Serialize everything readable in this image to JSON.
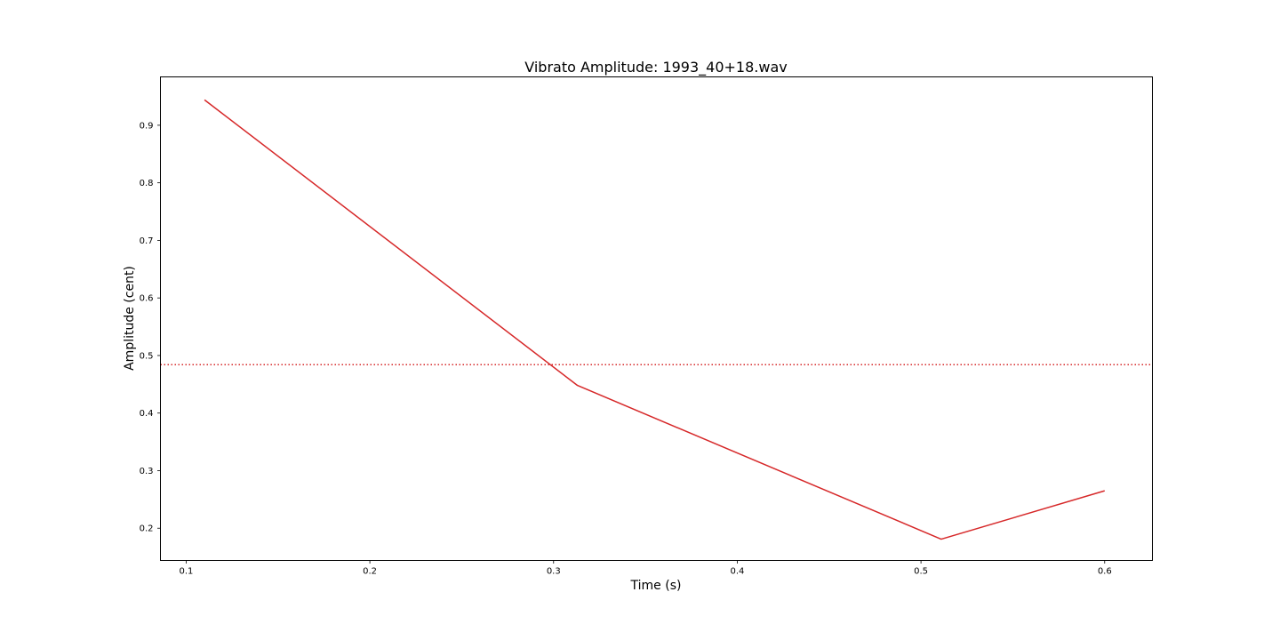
{
  "chart_data": {
    "type": "line",
    "title": "Vibrato Amplitude: 1993_40+18.wav",
    "xlabel": "Time (s)",
    "ylabel": "Amplitude (cent)",
    "xlim": [
      0.086,
      0.626
    ],
    "ylim": [
      0.144,
      0.984
    ],
    "xticks": [
      0.1,
      0.2,
      0.3,
      0.4,
      0.5,
      0.6
    ],
    "xtick_labels": [
      "0.1",
      "0.2",
      "0.3",
      "0.4",
      "0.5",
      "0.6"
    ],
    "yticks": [
      0.2,
      0.3,
      0.4,
      0.5,
      0.6,
      0.7,
      0.8,
      0.9
    ],
    "ytick_labels": [
      "0.2",
      "0.3",
      "0.4",
      "0.5",
      "0.6",
      "0.7",
      "0.8",
      "0.9"
    ],
    "grid": false,
    "series": [
      {
        "x": [
          0.11,
          0.313,
          0.511,
          0.6
        ],
        "y": [
          0.944,
          0.448,
          0.181,
          0.265
        ],
        "color": "#d62728",
        "style": "solid"
      }
    ],
    "reference_lines": [
      {
        "orientation": "horizontal",
        "y": 0.484,
        "color": "#d62728",
        "style": "dotted"
      }
    ]
  }
}
